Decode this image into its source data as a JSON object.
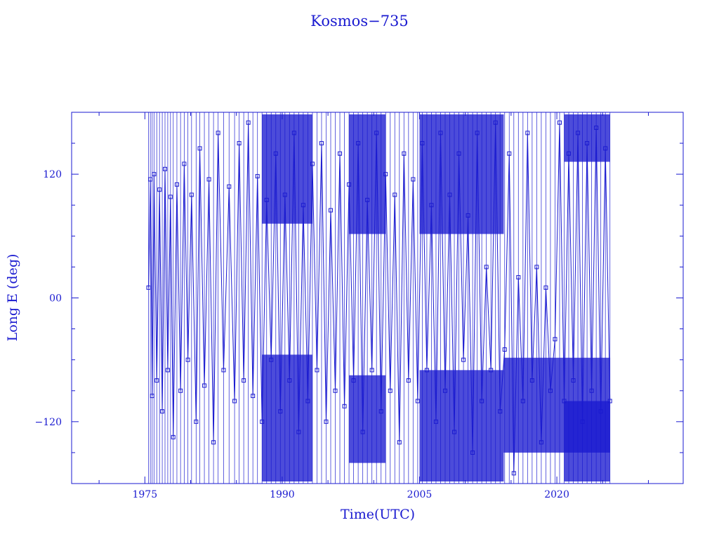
{
  "chart_data": {
    "type": "line",
    "title": "Kosmos−735",
    "xlabel": "Time(UTC)",
    "ylabel": "Long E (deg)",
    "xlim": [
      1967.0,
      2033.8
    ],
    "ylim": [
      -180,
      180
    ],
    "x_ticks": [
      1975,
      1990,
      2005,
      2020
    ],
    "x_tick_labels": [
      "1975",
      "1990",
      "2005",
      "2020"
    ],
    "y_ticks": [
      120,
      0,
      -120
    ],
    "y_tick_labels": [
      "120",
      "00",
      "−120"
    ],
    "grid": false,
    "legend": "none",
    "marker": "open-square",
    "color": "#1a1ad0",
    "series": [
      {
        "x": [
          1975.4,
          1975.6,
          1975.8,
          1976.0,
          1976.3,
          1976.6,
          1976.9,
          1977.2,
          1977.5,
          1977.8,
          1978.1,
          1978.5,
          1978.9,
          1979.3,
          1979.7,
          1980.1,
          1980.6,
          1981.0,
          1981.5,
          1982.0,
          1982.5,
          1983.0,
          1983.6,
          1984.2,
          1984.8,
          1985.3,
          1985.8,
          1986.3,
          1986.8,
          1987.3,
          1987.8,
          1988.3,
          1988.8,
          1989.3,
          1989.8,
          1990.3,
          1990.8,
          1991.3,
          1991.8,
          1992.3,
          1992.8,
          1993.3,
          1993.8,
          1994.3,
          1994.8,
          1995.3,
          1995.8,
          1996.3,
          1996.8,
          1997.3,
          1997.8,
          1998.3,
          1998.8,
          1999.3,
          1999.8,
          2000.3,
          2000.8,
          2001.3,
          2001.8,
          2002.3,
          2002.8,
          2003.3,
          2003.8,
          2004.3,
          2004.8,
          2005.3,
          2005.8,
          2006.3,
          2006.8,
          2007.3,
          2007.8,
          2008.3,
          2008.8,
          2009.3,
          2009.8,
          2010.3,
          2010.8,
          2011.3,
          2011.8,
          2012.3,
          2012.8,
          2013.3,
          2013.8,
          2014.3,
          2014.8,
          2015.3,
          2015.8,
          2016.3,
          2016.8,
          2017.3,
          2017.8,
          2018.3,
          2018.8,
          2019.3,
          2019.8,
          2020.3,
          2020.8,
          2021.3,
          2021.8,
          2022.3,
          2022.8,
          2023.3,
          2023.8,
          2024.3,
          2024.8,
          2025.3,
          2025.8
        ],
        "y": [
          10,
          115,
          -95,
          120,
          -80,
          105,
          -110,
          125,
          -70,
          98,
          -135,
          110,
          -90,
          130,
          -60,
          100,
          -120,
          145,
          -85,
          115,
          -140,
          160,
          -70,
          108,
          -100,
          150,
          -80,
          170,
          -95,
          118,
          -120,
          95,
          -60,
          140,
          -110,
          100,
          -80,
          160,
          -130,
          90,
          -100,
          130,
          -70,
          150,
          -120,
          85,
          -90,
          140,
          -105,
          110,
          -80,
          150,
          -130,
          95,
          -70,
          160,
          -110,
          120,
          -90,
          100,
          -140,
          140,
          -80,
          115,
          -100,
          150,
          -70,
          90,
          -120,
          160,
          -90,
          100,
          -130,
          140,
          -60,
          80,
          -150,
          160,
          -100,
          30,
          -70,
          170,
          -110,
          -50,
          140,
          -170,
          20,
          -100,
          160,
          -80,
          30,
          -140,
          10,
          -90,
          -40,
          170,
          -100,
          140,
          -80,
          160,
          -120,
          150,
          -90,
          165,
          -110,
          145,
          -100
        ]
      }
    ],
    "bands": [
      {
        "x": [
          1987.8,
          1993.3
        ],
        "y": [
          72,
          178
        ]
      },
      {
        "x": [
          1987.8,
          1993.3
        ],
        "y": [
          -178,
          -55
        ]
      },
      {
        "x": [
          1997.3,
          2001.3
        ],
        "y": [
          62,
          178
        ]
      },
      {
        "x": [
          1997.3,
          2001.3
        ],
        "y": [
          -160,
          -75
        ]
      },
      {
        "x": [
          2005.0,
          2014.2
        ],
        "y": [
          62,
          178
        ]
      },
      {
        "x": [
          2005.0,
          2014.2
        ],
        "y": [
          -178,
          -70
        ]
      },
      {
        "x": [
          2014.2,
          2025.8
        ],
        "y": [
          -150,
          -58
        ]
      },
      {
        "x": [
          2020.8,
          2025.8
        ],
        "y": [
          132,
          178
        ]
      },
      {
        "x": [
          2020.8,
          2025.8
        ],
        "y": [
          -178,
          -100
        ]
      }
    ]
  }
}
